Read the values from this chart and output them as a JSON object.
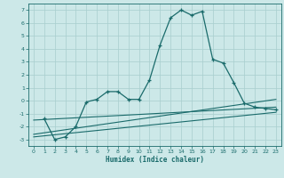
{
  "title": "",
  "xlabel": "Humidex (Indice chaleur)",
  "ylabel": "",
  "xlim": [
    -0.5,
    23.5
  ],
  "ylim": [
    -3.5,
    7.5
  ],
  "xticks": [
    0,
    1,
    2,
    3,
    4,
    5,
    6,
    7,
    8,
    9,
    10,
    11,
    12,
    13,
    14,
    15,
    16,
    17,
    18,
    19,
    20,
    21,
    22,
    23
  ],
  "yticks": [
    -3,
    -2,
    -1,
    0,
    1,
    2,
    3,
    4,
    5,
    6,
    7
  ],
  "bg_color": "#cce8e8",
  "line_color": "#1a6b6b",
  "grid_color": "#a8cece",
  "series1_x": [
    1,
    2,
    3,
    4,
    5,
    6,
    7,
    8,
    9,
    10,
    11,
    12,
    13,
    14,
    15,
    16,
    17,
    18,
    19,
    20,
    21,
    22,
    23
  ],
  "series1_y": [
    -1.4,
    -3.0,
    -2.8,
    -2.0,
    -0.1,
    0.1,
    0.7,
    0.7,
    0.1,
    0.1,
    1.6,
    4.3,
    6.4,
    7.0,
    6.6,
    6.9,
    3.2,
    2.9,
    1.4,
    -0.2,
    -0.5,
    -0.6,
    -0.7
  ],
  "series2_x": [
    0,
    23
  ],
  "series2_y": [
    -1.5,
    -0.5
  ],
  "series3_x": [
    0,
    23
  ],
  "series3_y": [
    -2.6,
    0.1
  ],
  "series4_x": [
    0,
    23
  ],
  "series4_y": [
    -2.8,
    -0.9
  ]
}
